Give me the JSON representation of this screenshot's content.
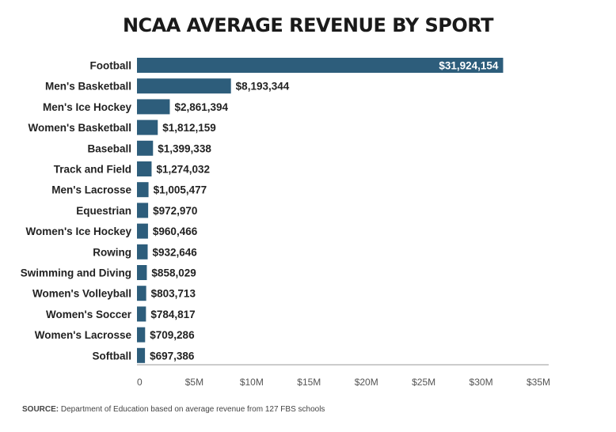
{
  "chart_data": {
    "type": "bar",
    "orientation": "horizontal",
    "title": "NCAA AVERAGE REVENUE BY SPORT",
    "categories": [
      "Football",
      "Men's Basketball",
      "Men's Ice Hockey",
      "Women's Basketball",
      "Baseball",
      "Track and Field",
      "Men's Lacrosse",
      "Equestrian",
      "Women's Ice Hockey",
      "Rowing",
      "Swimming and Diving",
      "Women's Volleyball",
      "Women's Soccer",
      "Women's Lacrosse",
      "Softball"
    ],
    "values": [
      31924154,
      8193344,
      2861394,
      1812159,
      1399338,
      1274032,
      1005477,
      972970,
      960466,
      932646,
      858029,
      803713,
      784817,
      709286,
      697386
    ],
    "value_labels": [
      "$31,924,154",
      "$8,193,344",
      "$2,861,394",
      "$1,812,159",
      "$1,399,338",
      "$1,274,032",
      "$1,005,477",
      "$972,970",
      "$960,466",
      "$932,646",
      "$858,029",
      "$803,713",
      "$784,817",
      "$709,286",
      "$697,386"
    ],
    "xlim": [
      0,
      35000000
    ],
    "xticks": [
      0,
      5000000,
      10000000,
      15000000,
      20000000,
      25000000,
      30000000,
      35000000
    ],
    "xtick_labels": [
      "0",
      "$5M",
      "$10M",
      "$15M",
      "$20M",
      "$25M",
      "$30M",
      "$35M"
    ],
    "xlabel": "",
    "ylabel": "",
    "grid": false,
    "bar_color": "#2d5d7b"
  },
  "source": {
    "label": "SOURCE:",
    "text": " Department of Education based on average revenue from 127 FBS schools"
  }
}
